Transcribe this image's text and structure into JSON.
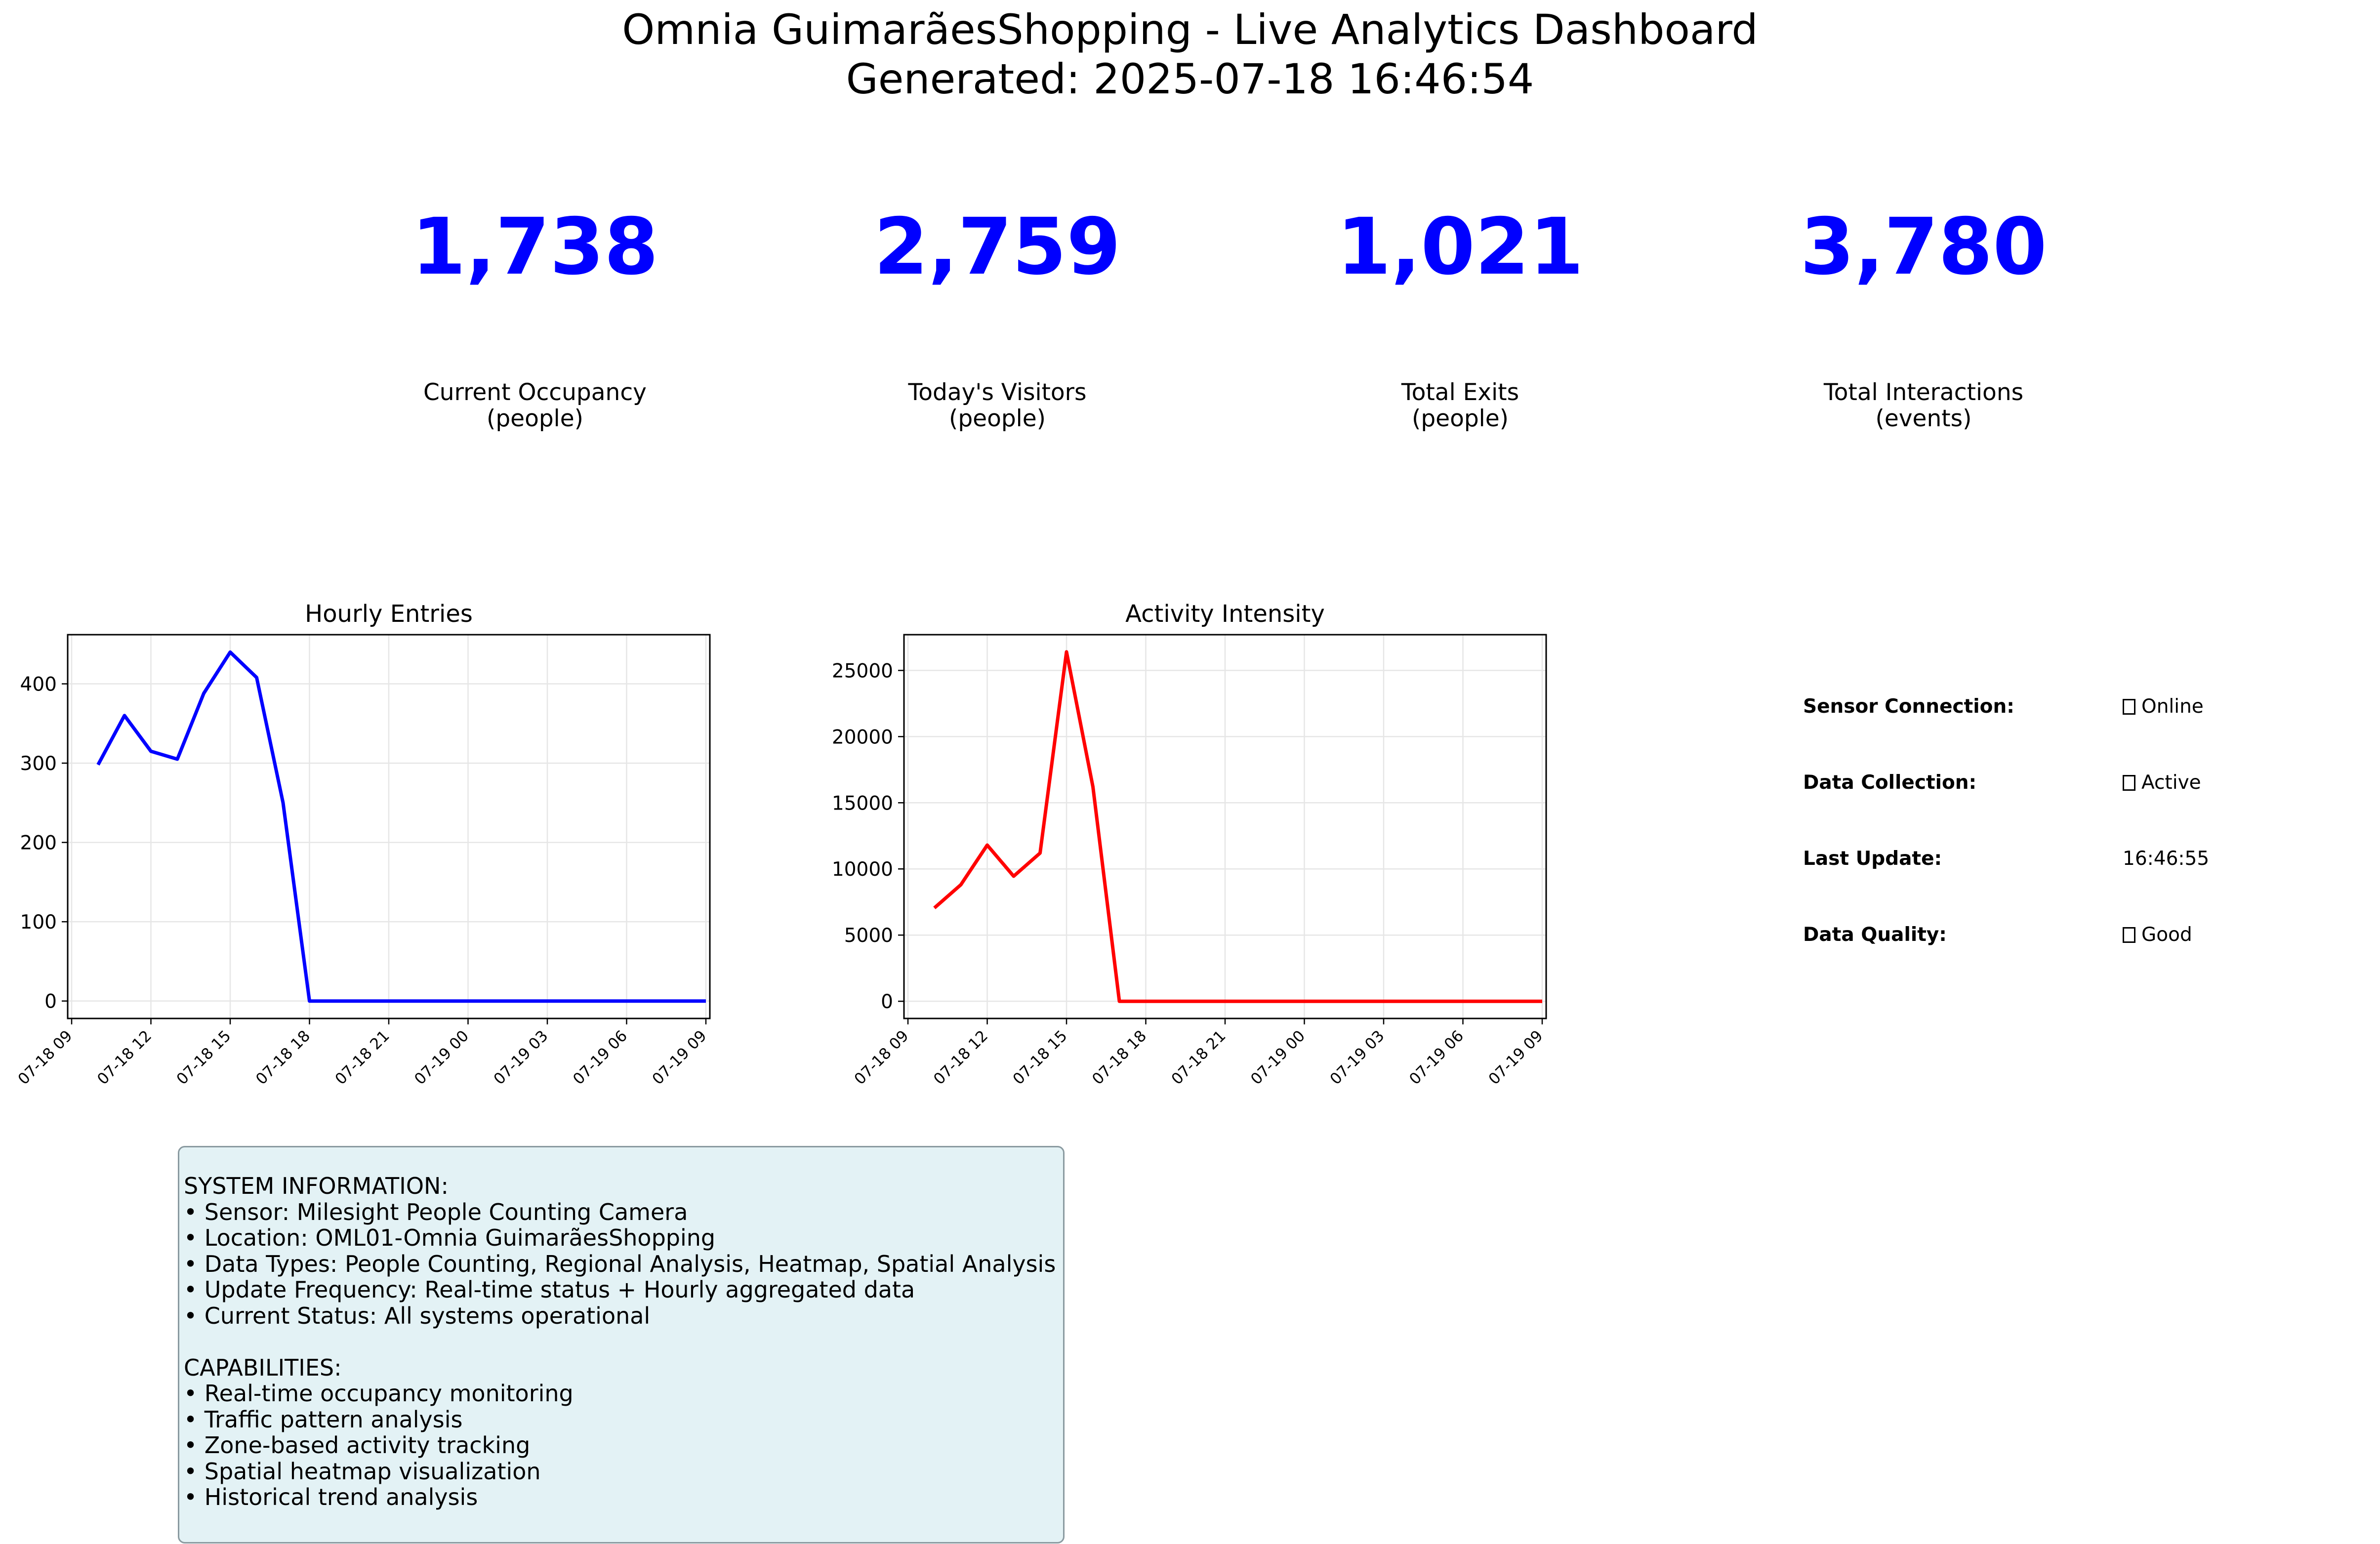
{
  "header": {
    "title": "Omnia GuimarãesShopping - Live Analytics Dashboard",
    "generated": "Generated: 2025-07-18 16:46:54"
  },
  "kpis": [
    {
      "value": "1,738",
      "label": "Current Occupancy",
      "unit": "(people)"
    },
    {
      "value": "2,759",
      "label": "Today's Visitors",
      "unit": "(people)"
    },
    {
      "value": "1,021",
      "label": "Total Exits",
      "unit": "(people)"
    },
    {
      "value": "3,780",
      "label": "Total Interactions",
      "unit": "(events)"
    }
  ],
  "colors": {
    "kpi": "#0000ff",
    "entries_line": "#0000ff",
    "activity_line": "#ff0000",
    "info_background": "#e3f2f5"
  },
  "status": {
    "items": [
      {
        "label": "Sensor Connection:",
        "value": "Online",
        "icon": "missing-glyph-icon"
      },
      {
        "label": "Data Collection:",
        "value": "Active",
        "icon": "missing-glyph-icon"
      },
      {
        "label": "Last Update:",
        "value": "16:46:55",
        "icon": ""
      },
      {
        "label": "Data Quality:",
        "value": "Good",
        "icon": "missing-glyph-icon"
      }
    ]
  },
  "info": {
    "text": "SYSTEM INFORMATION:\n• Sensor: Milesight People Counting Camera\n• Location: OML01-Omnia GuimarãesShopping\n• Data Types: People Counting, Regional Analysis, Heatmap, Spatial Analysis\n• Update Frequency: Real-time status + Hourly aggregated data\n• Current Status: All systems operational\n\nCAPABILITIES:\n• Real-time occupancy monitoring\n• Traffic pattern analysis\n• Zone-based activity tracking\n• Spatial heatmap visualization\n• Historical trend analysis"
  },
  "chart_data": [
    {
      "type": "line",
      "title": "Hourly Entries",
      "xlabel": "",
      "ylabel": "",
      "x_tick_labels": [
        "07-18 09",
        "07-18 12",
        "07-18 15",
        "07-18 18",
        "07-18 21",
        "07-19 00",
        "07-19 03",
        "07-19 06",
        "07-19 09"
      ],
      "x": [
        "2025-07-18 10:00",
        "2025-07-18 11:00",
        "2025-07-18 12:00",
        "2025-07-18 13:00",
        "2025-07-18 14:00",
        "2025-07-18 15:00",
        "2025-07-18 16:00",
        "2025-07-18 17:00",
        "2025-07-18 18:00",
        "2025-07-18 19:00",
        "2025-07-18 20:00",
        "2025-07-18 21:00",
        "2025-07-18 22:00",
        "2025-07-18 23:00",
        "2025-07-19 00:00",
        "2025-07-19 01:00",
        "2025-07-19 02:00",
        "2025-07-19 03:00",
        "2025-07-19 04:00",
        "2025-07-19 05:00",
        "2025-07-19 06:00",
        "2025-07-19 07:00",
        "2025-07-19 08:00",
        "2025-07-19 09:00"
      ],
      "values": [
        298,
        360,
        315,
        305,
        388,
        440,
        408,
        250,
        0,
        0,
        0,
        0,
        0,
        0,
        0,
        0,
        0,
        0,
        0,
        0,
        0,
        0,
        0,
        0
      ],
      "y_ticks": [
        0,
        100,
        200,
        300,
        400
      ],
      "ylim": [
        -22,
        462
      ],
      "grid": true,
      "color": "#0000ff"
    },
    {
      "type": "line",
      "title": "Activity Intensity",
      "xlabel": "",
      "ylabel": "",
      "x_tick_labels": [
        "07-18 09",
        "07-18 12",
        "07-18 15",
        "07-18 18",
        "07-18 21",
        "07-19 00",
        "07-19 03",
        "07-19 06",
        "07-19 09"
      ],
      "x": [
        "2025-07-18 10:00",
        "2025-07-18 11:00",
        "2025-07-18 12:00",
        "2025-07-18 13:00",
        "2025-07-18 14:00",
        "2025-07-18 15:00",
        "2025-07-18 16:00",
        "2025-07-18 17:00",
        "2025-07-18 18:00",
        "2025-07-18 19:00",
        "2025-07-18 20:00",
        "2025-07-18 21:00",
        "2025-07-18 22:00",
        "2025-07-18 23:00",
        "2025-07-19 00:00",
        "2025-07-19 01:00",
        "2025-07-19 02:00",
        "2025-07-19 03:00",
        "2025-07-19 04:00",
        "2025-07-19 05:00",
        "2025-07-19 06:00",
        "2025-07-19 07:00",
        "2025-07-19 08:00",
        "2025-07-19 09:00"
      ],
      "values": [
        7050,
        8800,
        11800,
        9450,
        11200,
        26400,
        16200,
        0,
        0,
        0,
        0,
        0,
        0,
        0,
        0,
        0,
        0,
        0,
        0,
        0,
        0,
        0,
        0,
        0
      ],
      "y_ticks": [
        0,
        5000,
        10000,
        15000,
        20000,
        25000
      ],
      "ylim": [
        -1300,
        27700
      ],
      "grid": true,
      "color": "#ff0000"
    }
  ]
}
